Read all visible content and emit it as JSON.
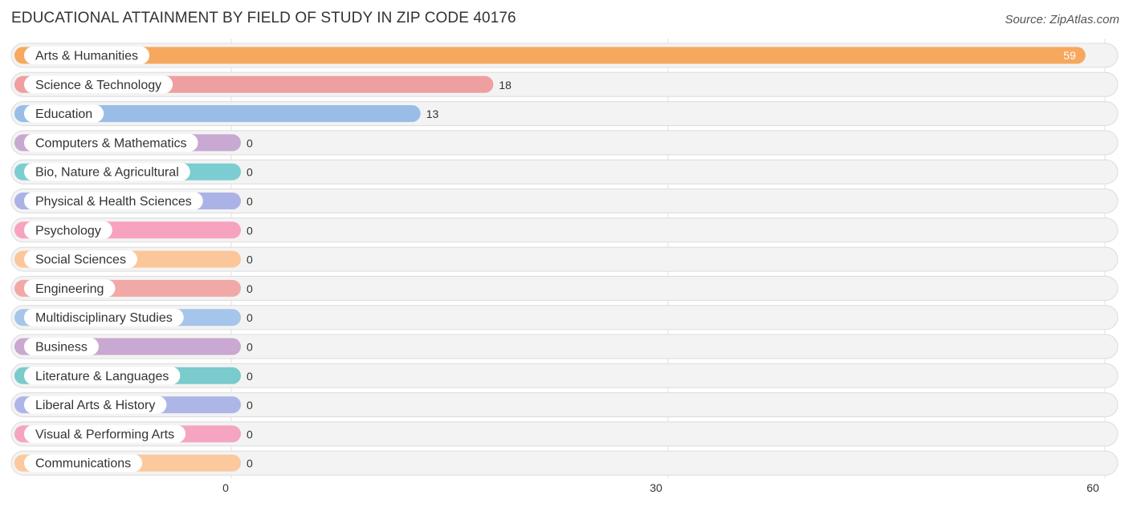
{
  "title": "EDUCATIONAL ATTAINMENT BY FIELD OF STUDY IN ZIP CODE 40176",
  "source": "Source: ZipAtlas.com",
  "chart_data": {
    "type": "bar",
    "orientation": "horizontal",
    "categories": [
      "Arts & Humanities",
      "Science & Technology",
      "Education",
      "Computers & Mathematics",
      "Bio, Nature & Agricultural",
      "Physical & Health Sciences",
      "Psychology",
      "Social Sciences",
      "Engineering",
      "Multidisciplinary Studies",
      "Business",
      "Literature & Languages",
      "Liberal Arts & History",
      "Visual & Performing Arts",
      "Communications"
    ],
    "values": [
      59,
      18,
      13,
      0,
      0,
      0,
      0,
      0,
      0,
      0,
      0,
      0,
      0,
      0,
      0
    ],
    "value_labels": [
      "59",
      "18",
      "13",
      "0",
      "0",
      "0",
      "0",
      "0",
      "0",
      "0",
      "0",
      "0",
      "0",
      "0",
      "0"
    ],
    "colors": [
      "#f5a85e",
      "#ef9f9f",
      "#99bde6",
      "#c8a9d2",
      "#7ccdd1",
      "#abb3e6",
      "#f7a3c0",
      "#fbc79a",
      "#f1a9a8",
      "#a6c5ea",
      "#c9a8d1",
      "#79cbcc",
      "#aeb6e8",
      "#f5a4c2",
      "#fbc99d"
    ],
    "xlim": [
      0,
      60
    ],
    "xticks": [
      0,
      30,
      60
    ],
    "xtick_labels": [
      "0",
      "30",
      "60"
    ],
    "grid": true
  }
}
